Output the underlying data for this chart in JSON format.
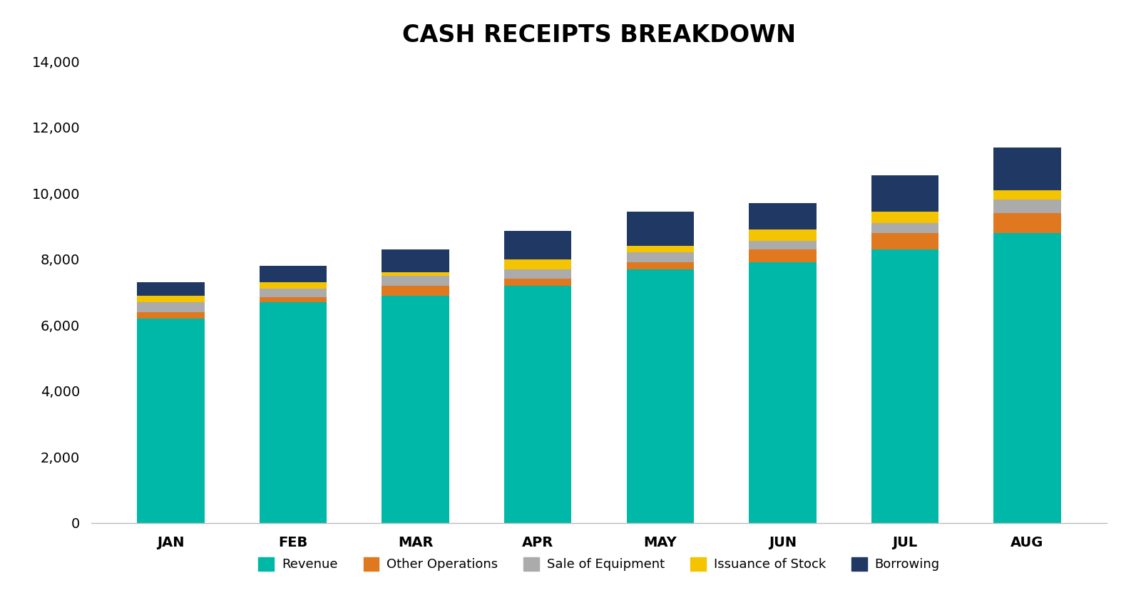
{
  "title": "CASH RECEIPTS BREAKDOWN",
  "months": [
    "JAN",
    "FEB",
    "MAR",
    "APR",
    "MAY",
    "JUN",
    "JUL",
    "AUG"
  ],
  "series": {
    "Revenue": [
      6200,
      6700,
      6900,
      7200,
      7700,
      7900,
      8300,
      8800
    ],
    "Other Operations": [
      200,
      150,
      300,
      200,
      200,
      400,
      500,
      600
    ],
    "Sale of Equipment": [
      300,
      250,
      300,
      300,
      300,
      250,
      300,
      400
    ],
    "Issuance of Stock": [
      200,
      200,
      100,
      300,
      200,
      350,
      350,
      300
    ],
    "Borrowing": [
      400,
      500,
      700,
      850,
      1050,
      800,
      1100,
      1300
    ]
  },
  "colors": {
    "Revenue": "#00B8A8",
    "Other Operations": "#E07820",
    "Sale of Equipment": "#ABABAB",
    "Issuance of Stock": "#F5C400",
    "Borrowing": "#1F3864"
  },
  "ylim": [
    0,
    14000
  ],
  "yticks": [
    0,
    2000,
    4000,
    6000,
    8000,
    10000,
    12000,
    14000
  ],
  "background_color": "#FFFFFF",
  "title_fontsize": 24,
  "tick_fontsize": 14,
  "legend_fontsize": 13,
  "bar_width": 0.55
}
